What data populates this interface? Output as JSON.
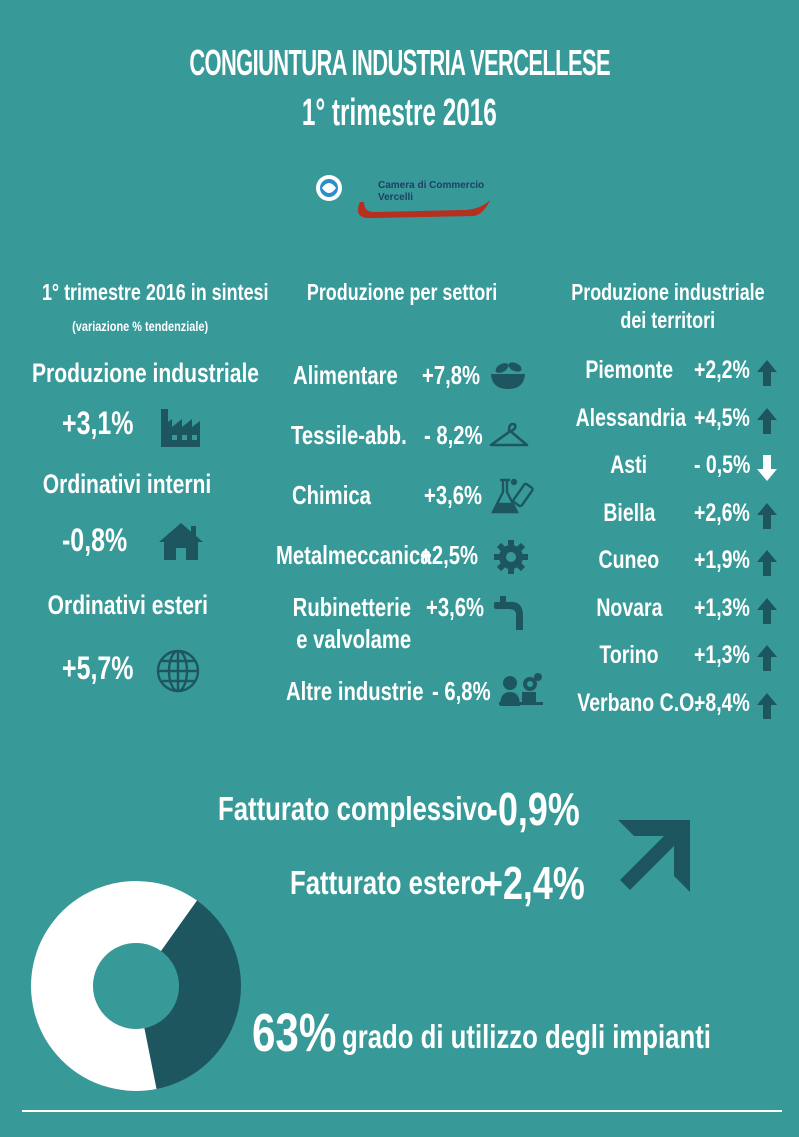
{
  "header": {
    "title": "CONGIUNTURA INDUSTRIA VERCELLESE",
    "subtitle": "1° trimestre 2016",
    "logo_text_line1": "Camera di Commercio",
    "logo_text_line2": "Vercelli"
  },
  "summary": {
    "heading": "1° trimestre 2016 in sintesi",
    "subheading": "(variazione % tendenziale)",
    "items": [
      {
        "label": "Produzione industriale",
        "value": "+3,1%",
        "icon": "factory-icon"
      },
      {
        "label": "Ordinativi interni",
        "value": "-0,8%",
        "icon": "home-icon"
      },
      {
        "label": "Ordinativi esteri",
        "value": "+5,7%",
        "icon": "globe-icon"
      }
    ]
  },
  "sectors": {
    "heading": "Produzione per settori",
    "items": [
      {
        "label": "Alimentare",
        "value": "+7,8%",
        "icon": "food-bowl-icon"
      },
      {
        "label": "Tessile-abb.",
        "value": "- 8,2%",
        "icon": "hanger-icon"
      },
      {
        "label": "Chimica",
        "value": "+3,6%",
        "icon": "flask-icon"
      },
      {
        "label": "Metalmeccanica",
        "value": "+2,5%",
        "icon": "gear-icon"
      },
      {
        "label_line1": "Rubinetterie",
        "label_line2": "e valvolame",
        "value": "+3,6%",
        "icon": "faucet-icon"
      },
      {
        "label": "Altre industrie",
        "value": "- 6,8%",
        "icon": "worker-gears-icon"
      }
    ]
  },
  "territories": {
    "heading_line1": "Produzione industriale",
    "heading_line2": "dei territori",
    "items": [
      {
        "label": "Piemonte",
        "value": "+2,2%",
        "trend": "up"
      },
      {
        "label": "Alessandria",
        "value": "+4,5%",
        "trend": "up"
      },
      {
        "label": "Asti",
        "value": "- 0,5%",
        "trend": "down"
      },
      {
        "label": "Biella",
        "value": "+2,6%",
        "trend": "up"
      },
      {
        "label": "Cuneo",
        "value": "+1,9%",
        "trend": "up"
      },
      {
        "label": "Novara",
        "value": "+1,3%",
        "trend": "up"
      },
      {
        "label": "Torino",
        "value": "+1,3%",
        "trend": "up"
      },
      {
        "label": "Verbano C.O.",
        "value": "+8,4%",
        "trend": "up"
      }
    ]
  },
  "revenue": {
    "total_label": "Fatturato complessivo",
    "total_value": "-0,9%",
    "foreign_label": "Fatturato estero",
    "foreign_value": "+2,4%"
  },
  "utilization": {
    "value": "63%",
    "label": "grado di utilizzo degli impianti",
    "fraction": 0.63
  },
  "colors": {
    "background": "#379a98",
    "dark": "#1e5660",
    "white": "#ffffff",
    "logo_red": "#b5301f"
  }
}
